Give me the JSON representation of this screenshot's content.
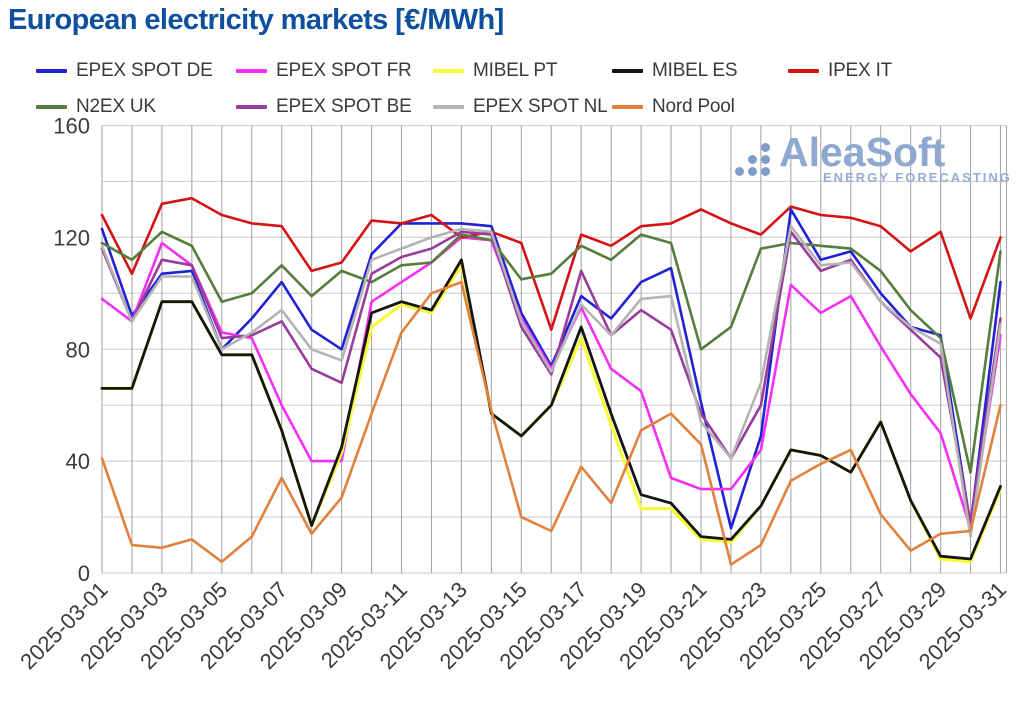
{
  "logo": {
    "brand": "AleaSoft",
    "tagline": "ENERGY FORECASTING",
    "color": "#8fa8d0"
  },
  "chart_data": {
    "type": "line",
    "title": "European electricity markets [€/MWh]",
    "xlabel": "",
    "ylabel": "",
    "ylim": [
      0,
      160
    ],
    "y_ticks": [
      0,
      40,
      80,
      120,
      160
    ],
    "grid_step_y": 20,
    "grid": true,
    "legend_position": "top",
    "x_tick_every": 2,
    "x": [
      "2025-03-01",
      "2025-03-02",
      "2025-03-03",
      "2025-03-04",
      "2025-03-05",
      "2025-03-06",
      "2025-03-07",
      "2025-03-08",
      "2025-03-09",
      "2025-03-10",
      "2025-03-11",
      "2025-03-12",
      "2025-03-13",
      "2025-03-14",
      "2025-03-15",
      "2025-03-16",
      "2025-03-17",
      "2025-03-18",
      "2025-03-19",
      "2025-03-20",
      "2025-03-21",
      "2025-03-22",
      "2025-03-23",
      "2025-03-24",
      "2025-03-25",
      "2025-03-26",
      "2025-03-27",
      "2025-03-28",
      "2025-03-29",
      "2025-03-30",
      "2025-03-31"
    ],
    "series": [
      {
        "id": "epex-spot-de",
        "name": "EPEX SPOT DE",
        "color": "#2222d4",
        "stroke_width": 2.6,
        "values": [
          123,
          92,
          107,
          108,
          80,
          91,
          104,
          87,
          80,
          114,
          125,
          125,
          125,
          124,
          93,
          74,
          99,
          91,
          104,
          109,
          61,
          16,
          49,
          130,
          112,
          115,
          100,
          88,
          85,
          17,
          104
        ]
      },
      {
        "id": "epex-spot-fr",
        "name": "EPEX SPOT FR",
        "color": "#f530f5",
        "stroke_width": 2.6,
        "values": [
          98,
          90,
          118,
          110,
          86,
          84,
          60,
          40,
          40,
          97,
          104,
          111,
          120,
          119,
          91,
          73,
          95,
          73,
          65,
          34,
          30,
          30,
          44,
          103,
          93,
          99,
          81,
          64,
          50,
          16,
          85
        ]
      },
      {
        "id": "mibel-pt",
        "name": "MIBEL PT",
        "color": "#f8f83c",
        "stroke_width": 3.2,
        "values": [
          66,
          66,
          97,
          97,
          78,
          78,
          51,
          17,
          43,
          88,
          96,
          93,
          110,
          57,
          49,
          60,
          84,
          53,
          23,
          23,
          12,
          11,
          24,
          44,
          42,
          36,
          54,
          26,
          5,
          4,
          30
        ]
      },
      {
        "id": "mibel-es",
        "name": "MIBEL ES",
        "color": "#151515",
        "stroke_width": 2.8,
        "values": [
          66,
          66,
          97,
          97,
          78,
          78,
          51,
          17,
          45,
          93,
          97,
          94,
          112,
          57,
          49,
          60,
          88,
          57,
          28,
          25,
          13,
          12,
          24,
          44,
          42,
          36,
          54,
          26,
          6,
          5,
          31
        ]
      },
      {
        "id": "ipex-it",
        "name": "IPEX IT",
        "color": "#d41414",
        "stroke_width": 2.6,
        "values": [
          128,
          107,
          132,
          134,
          128,
          125,
          124,
          108,
          111,
          126,
          125,
          128,
          120,
          122,
          118,
          87,
          121,
          117,
          124,
          125,
          130,
          125,
          121,
          131,
          128,
          127,
          124,
          115,
          122,
          91,
          120
        ]
      },
      {
        "id": "n2ex-uk",
        "name": "N2EX UK",
        "color": "#557d3b",
        "stroke_width": 2.6,
        "values": [
          118,
          112,
          122,
          117,
          97,
          100,
          110,
          99,
          108,
          104,
          110,
          111,
          121,
          119,
          105,
          107,
          117,
          112,
          121,
          118,
          80,
          88,
          116,
          118,
          117,
          116,
          108,
          94,
          84,
          36,
          115
        ]
      },
      {
        "id": "epex-spot-be",
        "name": "EPEX SPOT BE",
        "color": "#9a3c9c",
        "stroke_width": 2.6,
        "values": [
          116,
          90,
          112,
          110,
          84,
          85,
          90,
          73,
          68,
          107,
          113,
          116,
          122,
          121,
          88,
          71,
          108,
          85,
          94,
          87,
          57,
          41,
          60,
          122,
          108,
          112,
          97,
          87,
          77,
          18,
          91
        ]
      },
      {
        "id": "epex-spot-nl",
        "name": "EPEX SPOT NL",
        "color": "#b4b4b4",
        "stroke_width": 2.6,
        "values": [
          117,
          90,
          106,
          106,
          80,
          86,
          94,
          80,
          76,
          112,
          116,
          120,
          123,
          122,
          90,
          72,
          96,
          85,
          98,
          99,
          54,
          41,
          68,
          124,
          110,
          111,
          97,
          88,
          82,
          13,
          89
        ]
      },
      {
        "id": "nord-pool",
        "name": "Nord Pool",
        "color": "#e0813e",
        "stroke_width": 2.6,
        "values": [
          41,
          10,
          9,
          12,
          4,
          13,
          34,
          14,
          27,
          57,
          86,
          100,
          104,
          58,
          20,
          15,
          38,
          25,
          51,
          57,
          46,
          3,
          10,
          33,
          39,
          44,
          21,
          8,
          14,
          15,
          60
        ]
      }
    ]
  }
}
